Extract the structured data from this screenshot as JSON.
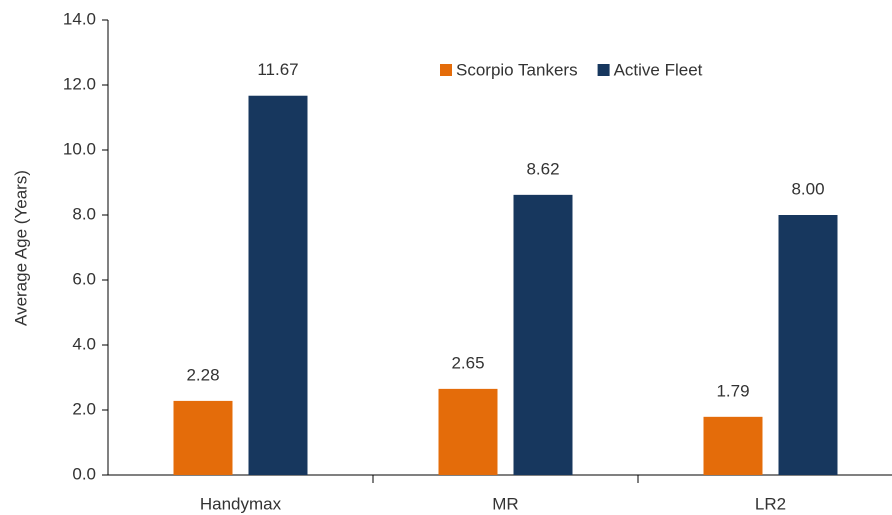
{
  "chart_data": {
    "type": "bar",
    "y_axis_label": "Average Age (Years)",
    "categories": [
      "Handymax",
      "MR",
      "LR2"
    ],
    "series": [
      {
        "name": "Scorpio Tankers",
        "color": "#e46c0a",
        "values": [
          2.28,
          2.65,
          1.79
        ],
        "value_labels": [
          "2.28",
          "2.65",
          "1.79"
        ]
      },
      {
        "name": "Active Fleet",
        "color": "#17375e",
        "values": [
          11.67,
          8.62,
          8
        ],
        "value_labels": [
          "11.67",
          "8.62",
          "8.00"
        ]
      }
    ],
    "ylim": [
      0,
      14
    ],
    "yticks": [
      {
        "value": 0,
        "label": "0.0"
      },
      {
        "value": 2,
        "label": "2.0"
      },
      {
        "value": 4,
        "label": "4.0"
      },
      {
        "value": 6,
        "label": "6.0"
      },
      {
        "value": 8,
        "label": "8.0"
      },
      {
        "value": 10,
        "label": "10.0"
      },
      {
        "value": 12,
        "label": "12.0"
      },
      {
        "value": 14,
        "label": "14.0"
      }
    ],
    "grid": false,
    "legend": "top"
  }
}
